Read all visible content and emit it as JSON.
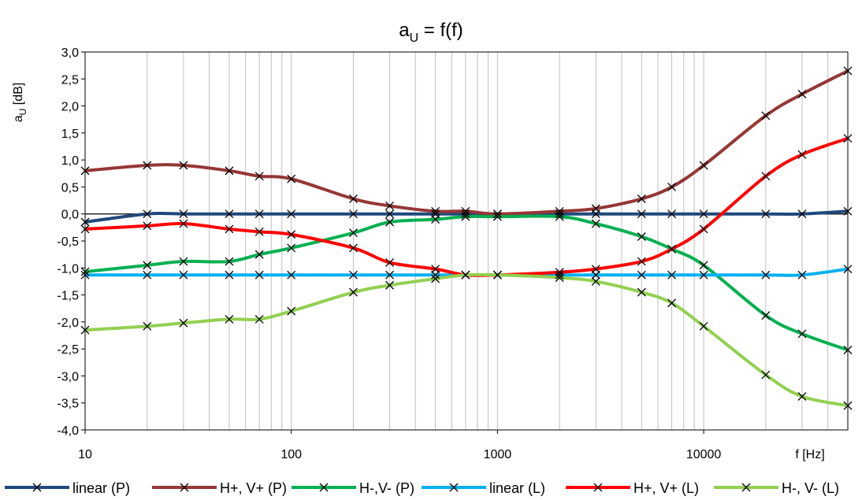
{
  "chart_data": {
    "type": "line",
    "title": "a",
    "title_sub": "U",
    "title_rest": " = f(f)",
    "ylabel": "a",
    "ylabel_sub": "U",
    "ylabel_rest": " [dB]",
    "xlabel": "f [Hz]",
    "x_scale": "log",
    "xlim": [
      10,
      50000
    ],
    "ylim": [
      -4.0,
      3.0
    ],
    "y_step": 0.5,
    "x_ticks": [
      10,
      100,
      1000,
      10000
    ],
    "x_tick_labels": [
      "10",
      "100",
      "1000",
      "10000"
    ],
    "y_tick_labels": [
      "3,0",
      "2,5",
      "2,0",
      "1,5",
      "1,0",
      "0,5",
      "0,0",
      "-0,5",
      "-1,0",
      "-1,5",
      "-2,0",
      "-2,5",
      "-3,0",
      "-3,5",
      "-4,0"
    ],
    "grid": "vertical-minor-log",
    "legend_position": "bottom",
    "x": [
      10,
      20,
      30,
      50,
      70,
      100,
      200,
      300,
      500,
      700,
      1000,
      2000,
      3000,
      5000,
      7000,
      10000,
      20000,
      30000,
      50000
    ],
    "series": [
      {
        "name": "linear (P)",
        "color": "#1f497d",
        "values": [
          -0.15,
          0.0,
          0.0,
          0.0,
          0.0,
          0.0,
          0.0,
          0.0,
          0.0,
          0.0,
          0.0,
          0.0,
          0.0,
          0.0,
          0.0,
          0.0,
          0.0,
          0.0,
          0.05
        ]
      },
      {
        "name": "H+, V+ (P)",
        "color": "#953735",
        "values": [
          0.8,
          0.9,
          0.9,
          0.8,
          0.7,
          0.65,
          0.28,
          0.15,
          0.05,
          0.05,
          0.0,
          0.05,
          0.1,
          0.28,
          0.5,
          0.9,
          1.82,
          2.22,
          2.65
        ]
      },
      {
        "name": "H-,V- (P)",
        "color": "#00b050",
        "values": [
          -1.07,
          -0.95,
          -0.88,
          -0.88,
          -0.75,
          -0.63,
          -0.35,
          -0.15,
          -0.1,
          -0.05,
          -0.05,
          -0.05,
          -0.18,
          -0.42,
          -0.65,
          -0.95,
          -1.88,
          -2.22,
          -2.52
        ]
      },
      {
        "name": "linear (L)",
        "color": "#00b0f0",
        "values": [
          -1.13,
          -1.13,
          -1.13,
          -1.13,
          -1.13,
          -1.13,
          -1.13,
          -1.13,
          -1.13,
          -1.13,
          -1.13,
          -1.13,
          -1.13,
          -1.13,
          -1.13,
          -1.13,
          -1.13,
          -1.13,
          -1.02
        ]
      },
      {
        "name": "H+, V+ (L)",
        "color": "#ff0000",
        "values": [
          -0.28,
          -0.22,
          -0.18,
          -0.28,
          -0.33,
          -0.38,
          -0.63,
          -0.9,
          -1.02,
          -1.13,
          -1.13,
          -1.08,
          -1.02,
          -0.88,
          -0.65,
          -0.28,
          0.7,
          1.1,
          1.4
        ]
      },
      {
        "name": "H-, V- (L)",
        "color": "#92d050",
        "values": [
          -2.15,
          -2.08,
          -2.02,
          -1.95,
          -1.95,
          -1.8,
          -1.45,
          -1.32,
          -1.2,
          -1.13,
          -1.13,
          -1.18,
          -1.25,
          -1.45,
          -1.65,
          -2.08,
          -2.98,
          -3.38,
          -3.55
        ]
      }
    ]
  }
}
